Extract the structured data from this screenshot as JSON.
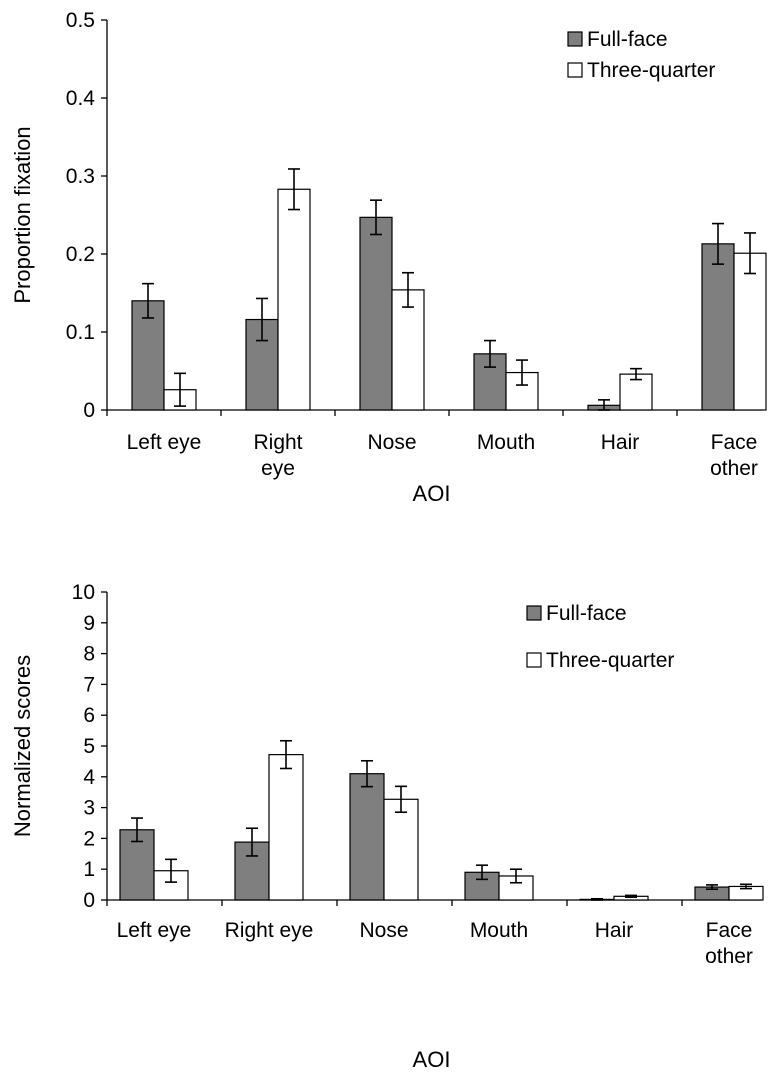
{
  "colors": {
    "full_face": "#7f7f7f",
    "three_quarter": "#ffffff",
    "stroke": "#000000"
  },
  "chart_data": [
    {
      "type": "bar",
      "xlabel": "AOI",
      "ylabel": "Proportion fixation",
      "ylim": [
        0,
        0.5
      ],
      "yticks": [
        "0",
        "0.1",
        "0.2",
        "0.3",
        "0.4",
        "0.5"
      ],
      "categories": [
        [
          "Left eye"
        ],
        [
          "Right",
          "eye"
        ],
        [
          "Nose"
        ],
        [
          "Mouth"
        ],
        [
          "Hair"
        ],
        [
          "Face",
          "other"
        ]
      ],
      "legend_position": "top-right",
      "grid": false,
      "series": [
        {
          "name": "Full-face",
          "values": [
            0.14,
            0.116,
            0.247,
            0.072,
            0.006,
            0.213
          ],
          "errors": [
            0.022,
            0.027,
            0.022,
            0.017,
            0.007,
            0.026
          ]
        },
        {
          "name": "Three-quarter",
          "values": [
            0.026,
            0.283,
            0.154,
            0.048,
            0.046,
            0.201
          ],
          "errors": [
            0.021,
            0.026,
            0.022,
            0.016,
            0.007,
            0.026
          ]
        }
      ]
    },
    {
      "type": "bar",
      "xlabel": "AOI",
      "ylabel": "Normalized scores",
      "ylim": [
        0,
        10
      ],
      "yticks": [
        "0",
        "1",
        "2",
        "3",
        "4",
        "5",
        "6",
        "7",
        "8",
        "9",
        "10"
      ],
      "categories": [
        [
          "Left eye"
        ],
        [
          "Right eye"
        ],
        [
          "Nose"
        ],
        [
          "Mouth"
        ],
        [
          "Hair"
        ],
        [
          "Face",
          "other"
        ]
      ],
      "legend_position": "top-right",
      "grid": false,
      "series": [
        {
          "name": "Full-face",
          "values": [
            2.28,
            1.88,
            4.1,
            0.9,
            0.02,
            0.42
          ],
          "errors": [
            0.38,
            0.45,
            0.42,
            0.23,
            0.02,
            0.07
          ]
        },
        {
          "name": "Three-quarter",
          "values": [
            0.95,
            4.72,
            3.27,
            0.78,
            0.12,
            0.44
          ],
          "errors": [
            0.37,
            0.45,
            0.42,
            0.22,
            0.03,
            0.07
          ]
        }
      ]
    }
  ]
}
